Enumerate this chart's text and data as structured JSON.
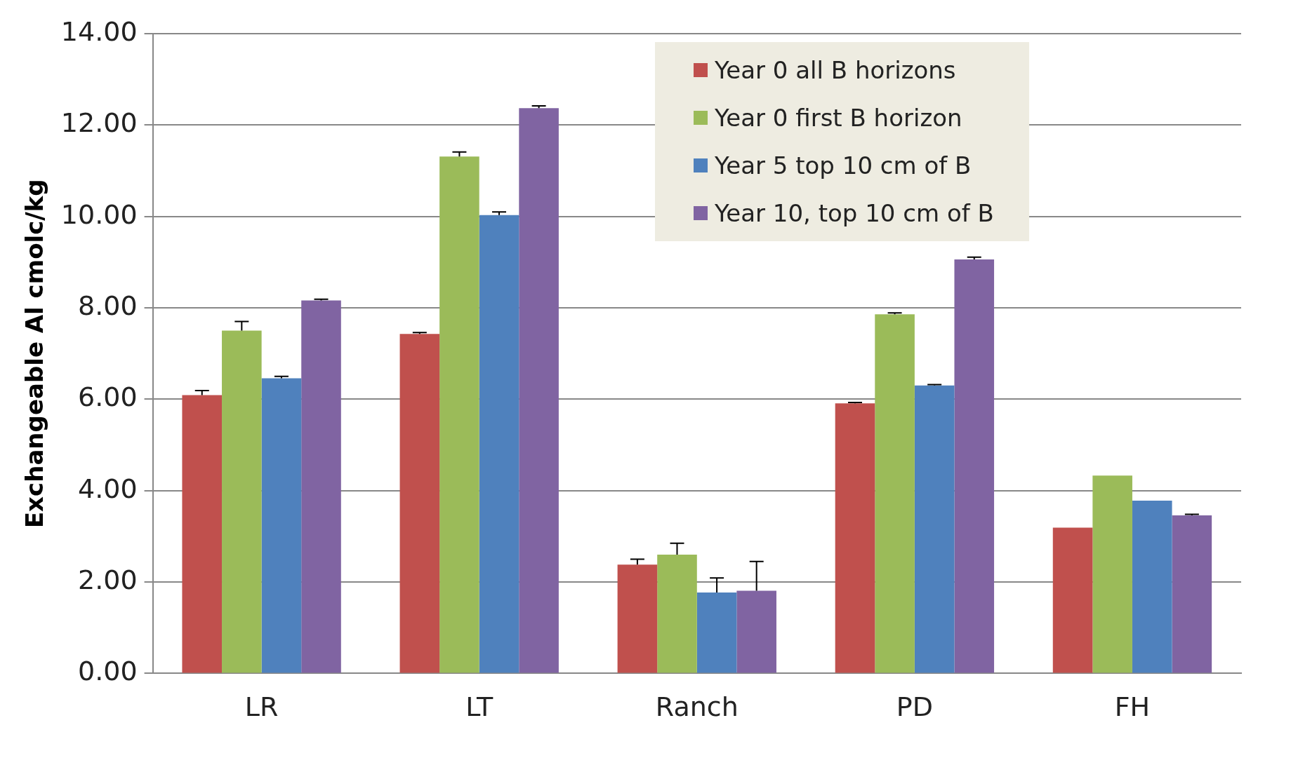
{
  "chart_data": {
    "type": "bar",
    "ylabel": "Exchangeable Al cmolc/kg",
    "categories": [
      "LR",
      "LT",
      "Ranch",
      "PD",
      "FH"
    ],
    "series": [
      {
        "name": "Year 0 all B horizons",
        "color": "#c0504d",
        "values": [
          6.09,
          7.43,
          2.38,
          5.91,
          3.19
        ],
        "errors": [
          [
            6.09,
            6.19
          ],
          [
            7.43,
            7.46
          ],
          [
            2.38,
            2.5
          ],
          [
            5.91,
            5.93
          ],
          null
        ]
      },
      {
        "name": "Year 0 first B horizon",
        "color": "#9bbb59",
        "values": [
          7.5,
          11.31,
          2.6,
          7.86,
          4.33
        ],
        "errors": [
          [
            7.5,
            7.7
          ],
          [
            11.31,
            11.41
          ],
          [
            2.6,
            2.85
          ],
          [
            7.86,
            7.89
          ],
          null
        ]
      },
      {
        "name": "Year 5 top 10 cm of B",
        "color": "#4f81bd",
        "values": [
          6.46,
          10.03,
          1.77,
          6.3,
          3.78
        ],
        "errors": [
          [
            6.46,
            6.5
          ],
          [
            10.03,
            10.1
          ],
          [
            1.77,
            2.09
          ],
          [
            6.3,
            6.32
          ],
          null
        ]
      },
      {
        "name": "Year 10, top 10 cm of B",
        "color": "#8064a2",
        "values": [
          8.16,
          12.37,
          1.81,
          9.06,
          3.46
        ],
        "errors": [
          [
            8.16,
            8.19
          ],
          [
            12.37,
            12.42
          ],
          [
            1.81,
            2.45
          ],
          [
            9.06,
            9.11
          ],
          [
            3.46,
            3.48
          ]
        ]
      }
    ],
    "ylim": [
      0,
      14
    ],
    "yticks": [
      {
        "value": 0,
        "label": "0.00"
      },
      {
        "value": 2,
        "label": "2.00"
      },
      {
        "value": 4,
        "label": "4.00"
      },
      {
        "value": 6,
        "label": "6.00"
      },
      {
        "value": 8,
        "label": "8.00"
      },
      {
        "value": 10,
        "label": "10.00"
      },
      {
        "value": 12,
        "label": "12.00"
      },
      {
        "value": 14,
        "label": "14.00"
      }
    ],
    "grid": "y",
    "legend": "top"
  }
}
